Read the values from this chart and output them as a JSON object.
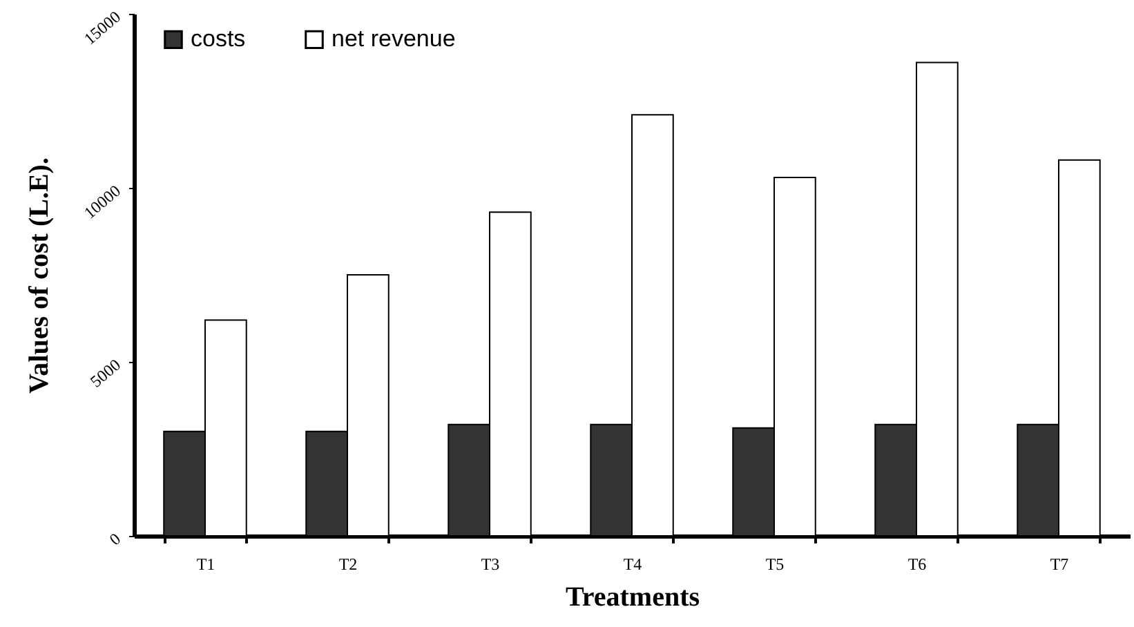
{
  "chart_data": {
    "type": "bar",
    "xlabel": "Treatments",
    "ylabel": "Values of cost (L.E).",
    "categories": [
      "T1",
      "T2",
      "T3",
      "T4",
      "T5",
      "T6",
      "T7"
    ],
    "series": [
      {
        "name": "costs",
        "color": "#333333",
        "values": [
          3000,
          3000,
          3200,
          3200,
          3100,
          3200,
          3200
        ]
      },
      {
        "name": "net revenue",
        "color": "#ffffff",
        "values": [
          6200,
          7500,
          9300,
          12100,
          10300,
          13600,
          10800
        ]
      }
    ],
    "ylim": [
      0,
      15000
    ],
    "yticks": [
      0,
      5000,
      10000,
      15000
    ],
    "grid": false,
    "legend": "top left"
  }
}
